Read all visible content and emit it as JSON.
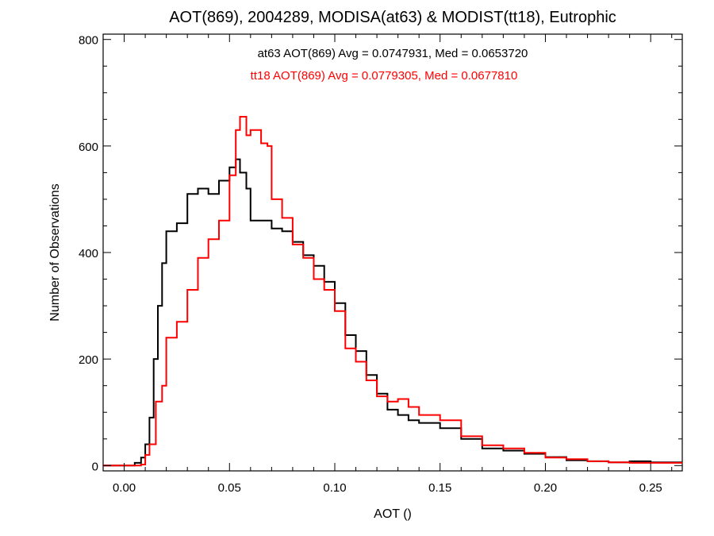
{
  "chart_data": {
    "type": "line",
    "style": "step-histogram",
    "title": "AOT(869), 2004289, MODISA(at63) & MODIST(tt18), Eutrophic",
    "xlabel": "AOT ()",
    "ylabel": "Number of Observations",
    "xlim": [
      -0.01,
      0.265
    ],
    "ylim": [
      -10,
      810
    ],
    "x_ticks": [
      0.0,
      0.05,
      0.1,
      0.15,
      0.2,
      0.25
    ],
    "x_tick_labels": [
      "0.00",
      "0.05",
      "0.10",
      "0.15",
      "0.20",
      "0.25"
    ],
    "y_ticks": [
      0,
      200,
      400,
      600,
      800
    ],
    "y_tick_labels": [
      "0",
      "200",
      "400",
      "600",
      "800"
    ],
    "grid": false,
    "annotations": [
      {
        "text": "at63 AOT(869) Avg = 0.0747931, Med = 0.0653720",
        "color": "#000000"
      },
      {
        "text": "tt18 AOT(869) Avg = 0.0779305, Med = 0.0677810",
        "color": "#ff0000"
      }
    ],
    "series": [
      {
        "color": "#000000",
        "points": [
          [
            -0.01,
            0
          ],
          [
            0.0,
            0
          ],
          [
            0.005,
            5
          ],
          [
            0.008,
            15
          ],
          [
            0.01,
            40
          ],
          [
            0.012,
            90
          ],
          [
            0.014,
            200
          ],
          [
            0.016,
            300
          ],
          [
            0.018,
            380
          ],
          [
            0.02,
            440
          ],
          [
            0.025,
            455
          ],
          [
            0.03,
            510
          ],
          [
            0.035,
            520
          ],
          [
            0.04,
            510
          ],
          [
            0.045,
            535
          ],
          [
            0.05,
            560
          ],
          [
            0.053,
            575
          ],
          [
            0.055,
            550
          ],
          [
            0.058,
            520
          ],
          [
            0.06,
            460
          ],
          [
            0.065,
            460
          ],
          [
            0.07,
            445
          ],
          [
            0.075,
            440
          ],
          [
            0.08,
            420
          ],
          [
            0.085,
            395
          ],
          [
            0.09,
            375
          ],
          [
            0.095,
            345
          ],
          [
            0.1,
            305
          ],
          [
            0.105,
            245
          ],
          [
            0.11,
            215
          ],
          [
            0.115,
            170
          ],
          [
            0.12,
            135
          ],
          [
            0.125,
            105
          ],
          [
            0.13,
            95
          ],
          [
            0.135,
            85
          ],
          [
            0.14,
            80
          ],
          [
            0.15,
            70
          ],
          [
            0.16,
            50
          ],
          [
            0.17,
            32
          ],
          [
            0.18,
            28
          ],
          [
            0.19,
            22
          ],
          [
            0.2,
            16
          ],
          [
            0.21,
            10
          ],
          [
            0.22,
            8
          ],
          [
            0.23,
            6
          ],
          [
            0.24,
            8
          ],
          [
            0.25,
            6
          ],
          [
            0.265,
            4
          ]
        ]
      },
      {
        "color": "#ff0000",
        "points": [
          [
            -0.01,
            0
          ],
          [
            0.0,
            0
          ],
          [
            0.008,
            2
          ],
          [
            0.01,
            20
          ],
          [
            0.012,
            40
          ],
          [
            0.015,
            120
          ],
          [
            0.018,
            150
          ],
          [
            0.02,
            240
          ],
          [
            0.025,
            270
          ],
          [
            0.03,
            330
          ],
          [
            0.035,
            390
          ],
          [
            0.04,
            425
          ],
          [
            0.045,
            460
          ],
          [
            0.05,
            545
          ],
          [
            0.053,
            630
          ],
          [
            0.055,
            655
          ],
          [
            0.058,
            620
          ],
          [
            0.06,
            630
          ],
          [
            0.065,
            605
          ],
          [
            0.068,
            600
          ],
          [
            0.07,
            500
          ],
          [
            0.075,
            465
          ],
          [
            0.08,
            415
          ],
          [
            0.085,
            390
          ],
          [
            0.09,
            350
          ],
          [
            0.095,
            330
          ],
          [
            0.1,
            290
          ],
          [
            0.105,
            220
          ],
          [
            0.11,
            195
          ],
          [
            0.115,
            160
          ],
          [
            0.12,
            130
          ],
          [
            0.125,
            120
          ],
          [
            0.13,
            125
          ],
          [
            0.135,
            110
          ],
          [
            0.14,
            95
          ],
          [
            0.15,
            85
          ],
          [
            0.16,
            55
          ],
          [
            0.17,
            38
          ],
          [
            0.18,
            32
          ],
          [
            0.19,
            24
          ],
          [
            0.2,
            15
          ],
          [
            0.21,
            12
          ],
          [
            0.22,
            8
          ],
          [
            0.23,
            6
          ],
          [
            0.24,
            5
          ],
          [
            0.25,
            5
          ],
          [
            0.265,
            4
          ]
        ]
      }
    ]
  }
}
